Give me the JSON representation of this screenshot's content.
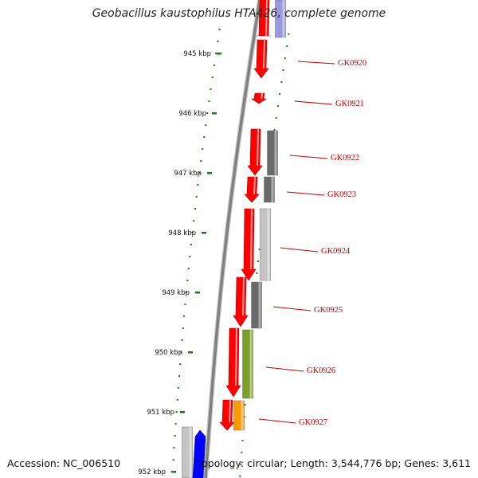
{
  "title": "Geobacillus kaustophilus HTA426, complete genome",
  "footer": {
    "accession": "Accession: NC_006510",
    "summary": "Topology: circular; Length: 3,544,776 bp; Genes: 3,611"
  },
  "colors": {
    "gene_label": "#c00000",
    "tick": "#1a7a1a",
    "backbone": "#808080",
    "forward_gene": "#ff0000",
    "cog_dark_gray": "#6a6a6a",
    "cog_light_gray": "#c4c4c4",
    "cog_green": "#7aa02a",
    "cog_orange": "#ff9900",
    "cog_blue": "#0000ff",
    "cog_lavender": "#9999dd"
  },
  "scale_labels": [
    "945 kbp",
    "946 kbp",
    "947 kbp",
    "948 kbp",
    "949 kbp",
    "950 kbp",
    "951 kbp",
    "952 kbp"
  ],
  "genes": [
    {
      "label": "GK0920",
      "cog_color": "none"
    },
    {
      "label": "GK0921",
      "cog_color": "none"
    },
    {
      "label": "GK0922",
      "cog_color": "dark_gray"
    },
    {
      "label": "GK0923",
      "cog_color": "dark_gray"
    },
    {
      "label": "GK0924",
      "cog_color": "light_gray"
    },
    {
      "label": "GK0925",
      "cog_color": "dark_gray"
    },
    {
      "label": "GK0926",
      "cog_color": "green"
    },
    {
      "label": "GK0927",
      "cog_color": "orange"
    }
  ]
}
